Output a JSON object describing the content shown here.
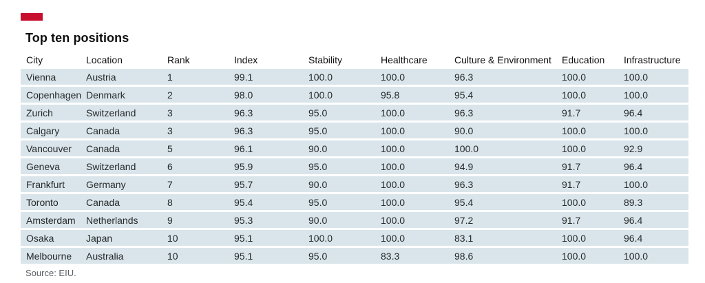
{
  "brand": {
    "red_hex": "#c8102e"
  },
  "title": "Top ten positions",
  "source": "Source: EIU.",
  "table": {
    "row_band_hex": "#d9e5ea"
  },
  "chart_data": {
    "type": "table",
    "title": "Top ten positions",
    "source": "Source: EIU.",
    "columns": [
      {
        "key": "city",
        "label": "City"
      },
      {
        "key": "location",
        "label": "Location"
      },
      {
        "key": "rank",
        "label": "Rank"
      },
      {
        "key": "index",
        "label": "Index"
      },
      {
        "key": "stability",
        "label": "Stability"
      },
      {
        "key": "healthcare",
        "label": "Healthcare"
      },
      {
        "key": "culture",
        "label": "Culture & Environment"
      },
      {
        "key": "education",
        "label": "Education"
      },
      {
        "key": "infrastructure",
        "label": "Infrastructure"
      }
    ],
    "rows": [
      {
        "city": "Vienna",
        "location": "Austria",
        "rank": "1",
        "index": "99.1",
        "stability": "100.0",
        "healthcare": "100.0",
        "culture": "96.3",
        "education": "100.0",
        "infrastructure": "100.0"
      },
      {
        "city": "Copenhagen",
        "location": "Denmark",
        "rank": "2",
        "index": "98.0",
        "stability": "100.0",
        "healthcare": "95.8",
        "culture": "95.4",
        "education": "100.0",
        "infrastructure": "100.0"
      },
      {
        "city": "Zurich",
        "location": "Switzerland",
        "rank": "3",
        "index": "96.3",
        "stability": "95.0",
        "healthcare": "100.0",
        "culture": "96.3",
        "education": "91.7",
        "infrastructure": "96.4"
      },
      {
        "city": "Calgary",
        "location": "Canada",
        "rank": "3",
        "index": "96.3",
        "stability": "95.0",
        "healthcare": "100.0",
        "culture": "90.0",
        "education": "100.0",
        "infrastructure": "100.0"
      },
      {
        "city": "Vancouver",
        "location": "Canada",
        "rank": "5",
        "index": "96.1",
        "stability": "90.0",
        "healthcare": "100.0",
        "culture": "100.0",
        "education": "100.0",
        "infrastructure": "92.9"
      },
      {
        "city": "Geneva",
        "location": "Switzerland",
        "rank": "6",
        "index": "95.9",
        "stability": "95.0",
        "healthcare": "100.0",
        "culture": "94.9",
        "education": "91.7",
        "infrastructure": "96.4"
      },
      {
        "city": "Frankfurt",
        "location": "Germany",
        "rank": "7",
        "index": "95.7",
        "stability": "90.0",
        "healthcare": "100.0",
        "culture": "96.3",
        "education": "91.7",
        "infrastructure": "100.0"
      },
      {
        "city": "Toronto",
        "location": "Canada",
        "rank": "8",
        "index": "95.4",
        "stability": "95.0",
        "healthcare": "100.0",
        "culture": "95.4",
        "education": "100.0",
        "infrastructure": "89.3"
      },
      {
        "city": "Amsterdam",
        "location": "Netherlands",
        "rank": "9",
        "index": "95.3",
        "stability": "90.0",
        "healthcare": "100.0",
        "culture": "97.2",
        "education": "91.7",
        "infrastructure": "96.4"
      },
      {
        "city": "Osaka",
        "location": "Japan",
        "rank": "10",
        "index": "95.1",
        "stability": "100.0",
        "healthcare": "100.0",
        "culture": "83.1",
        "education": "100.0",
        "infrastructure": "96.4"
      },
      {
        "city": "Melbourne",
        "location": "Australia",
        "rank": "10",
        "index": "95.1",
        "stability": "95.0",
        "healthcare": "83.3",
        "culture": "98.6",
        "education": "100.0",
        "infrastructure": "100.0"
      }
    ]
  }
}
